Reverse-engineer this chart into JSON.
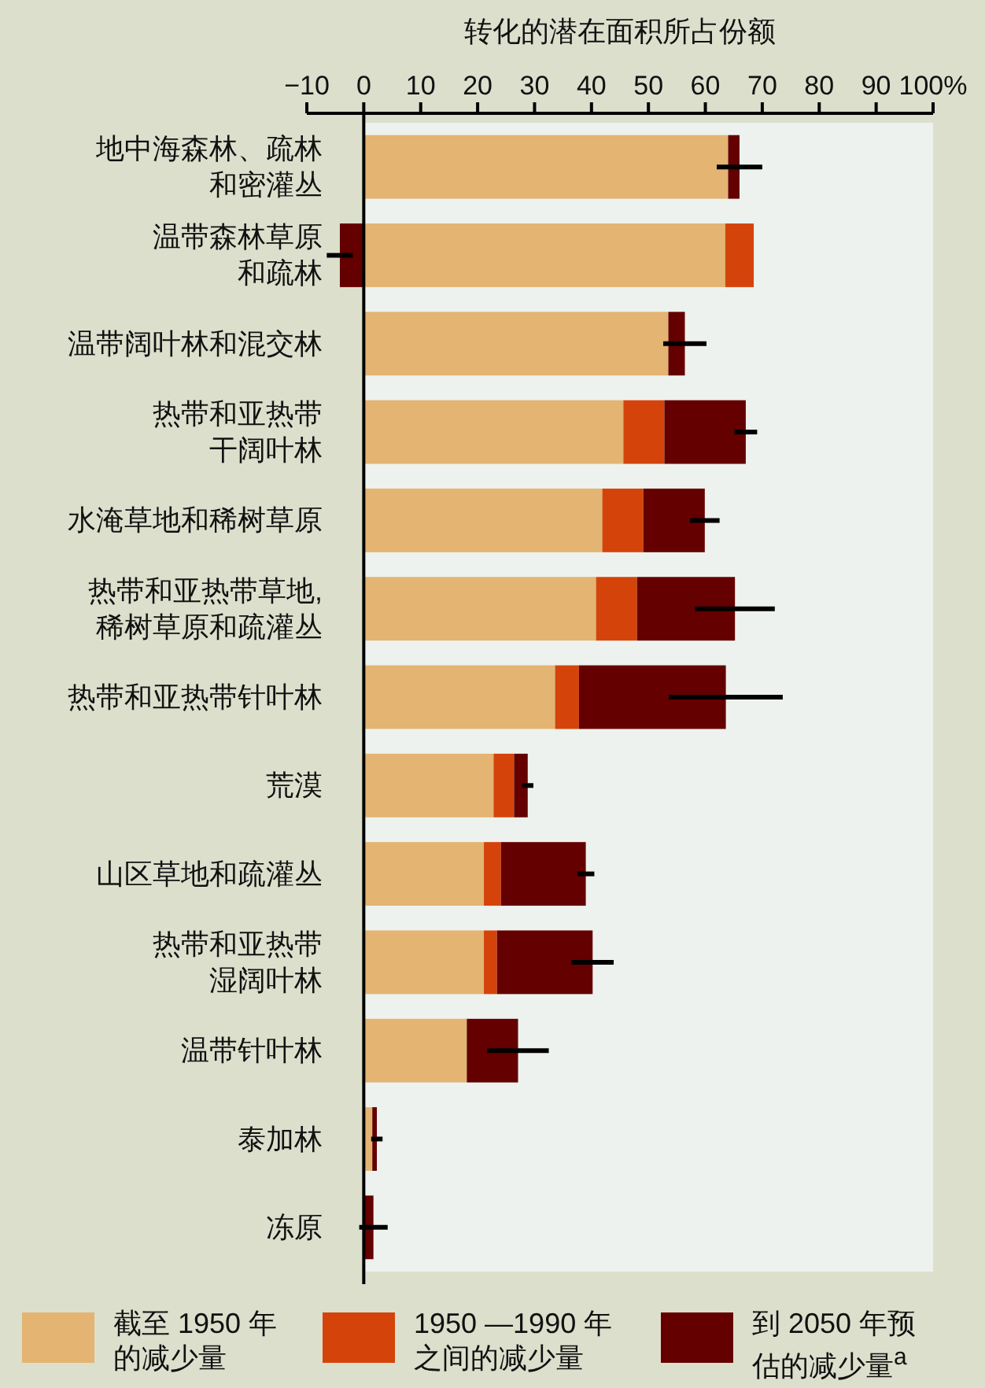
{
  "chart_data": {
    "type": "bar",
    "orientation": "horizontal",
    "stacked": true,
    "xlabel": "转化的潜在面积所占份额",
    "categories": [
      "地中海森林、疏林和密灌丛",
      "温带森林草原和疏林",
      "温带阔叶林和混交林",
      "热带和亚热带干阔叶林",
      "水淹草地和稀树草原",
      "热带和亚热带草地,稀树草原和疏灌丛",
      "热带和亚热带针叶林",
      "荒漠",
      "山区草地和疏灌丛",
      "热带和亚热带湿阔叶林",
      "温带针叶林",
      "泰加林",
      "冻原"
    ],
    "series": [
      {
        "name": "截至 1950 年的减少量",
        "color": "#e3b472",
        "values": [
          64,
          63.5,
          53.5,
          45.6,
          41.9,
          40.8,
          33.6,
          22.8,
          21.1,
          21.1,
          18.1,
          1.5,
          null
        ]
      },
      {
        "name": "1950 —1990 年之间的减少量",
        "color": "#d4440a",
        "values": [
          null,
          5,
          null,
          7.2,
          7.2,
          7.2,
          4.2,
          3.6,
          3,
          2.3,
          null,
          null,
          null
        ]
      },
      {
        "name": "到 2050 年预估的减少量$^{a}$",
        "color": "#640000",
        "values": [
          2,
          -4.2,
          2.9,
          14.3,
          10.8,
          17.2,
          25.8,
          2.4,
          14.9,
          16.8,
          9,
          0.8,
          1.7
        ],
        "errors": [
          4,
          2.3,
          3.8,
          2,
          2.6,
          7,
          10,
          1,
          1.5,
          3.7,
          5.4,
          1,
          2.5
        ]
      }
    ],
    "xlim": [
      -10,
      100
    ],
    "xticks": [
      {
        "value": -10,
        "label": "−10"
      },
      0,
      10,
      20,
      30,
      40,
      50,
      60,
      70,
      80,
      90,
      {
        "value": 100,
        "label": "100%"
      }
    ],
    "legend": "bottom"
  }
}
